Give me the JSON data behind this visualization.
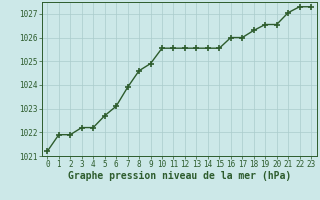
{
  "x": [
    0,
    1,
    2,
    3,
    4,
    5,
    6,
    7,
    8,
    9,
    10,
    11,
    12,
    13,
    14,
    15,
    16,
    17,
    18,
    19,
    20,
    21,
    22,
    23
  ],
  "y": [
    1021.2,
    1021.9,
    1021.9,
    1022.2,
    1022.2,
    1022.7,
    1023.1,
    1023.9,
    1024.6,
    1024.9,
    1025.55,
    1025.55,
    1025.55,
    1025.55,
    1025.55,
    1025.55,
    1026.0,
    1026.0,
    1026.3,
    1026.55,
    1026.55,
    1027.05,
    1027.3,
    1027.3
  ],
  "line_color": "#2d5c2d",
  "marker": "+",
  "marker_color": "#2d5c2d",
  "bg_color": "#cce8e8",
  "grid_color": "#aacccc",
  "label_color": "#2d5c2d",
  "xlabel": "Graphe pression niveau de la mer (hPa)",
  "xlim_min": -0.5,
  "xlim_max": 23.5,
  "ylim_min": 1021.0,
  "ylim_max": 1027.5,
  "yticks": [
    1021,
    1022,
    1023,
    1024,
    1025,
    1026,
    1027
  ],
  "xticks": [
    0,
    1,
    2,
    3,
    4,
    5,
    6,
    7,
    8,
    9,
    10,
    11,
    12,
    13,
    14,
    15,
    16,
    17,
    18,
    19,
    20,
    21,
    22,
    23
  ],
  "tick_fontsize": 5.5,
  "xlabel_fontsize": 7.0,
  "line_width": 1.0,
  "marker_size": 4.5,
  "marker_edge_width": 1.2
}
